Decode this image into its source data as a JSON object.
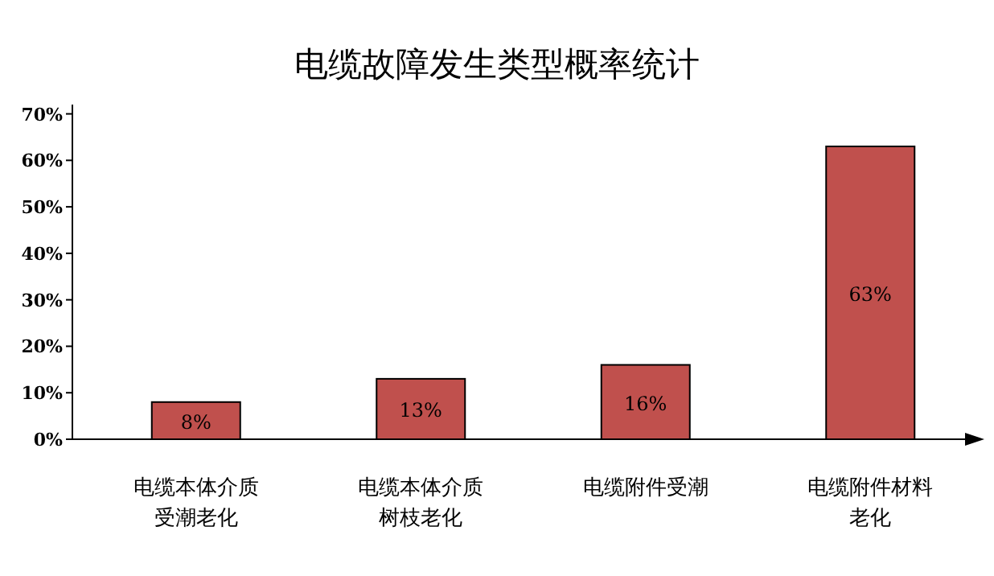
{
  "chart_data": {
    "type": "bar",
    "title": "电缆故障发生类型概率统计",
    "categories": [
      "电缆本体介质受潮老化",
      "电缆本体介质树枝老化",
      "电缆附件受潮",
      "电缆附件材料老化"
    ],
    "values": [
      8,
      13,
      16,
      63
    ],
    "value_labels": [
      "8%",
      "13%",
      "16%",
      "63%"
    ],
    "color": "#c0504d",
    "ylim": [
      0,
      72
    ],
    "yticks": [
      {
        "value": 0,
        "label": "0%"
      },
      {
        "value": 10,
        "label": "10%"
      },
      {
        "value": 20,
        "label": "20%"
      },
      {
        "value": 30,
        "label": "30%"
      },
      {
        "value": 40,
        "label": "40%"
      },
      {
        "value": 50,
        "label": "50%"
      },
      {
        "value": 60,
        "label": "60%"
      },
      {
        "value": 70,
        "label": "70%"
      }
    ]
  }
}
